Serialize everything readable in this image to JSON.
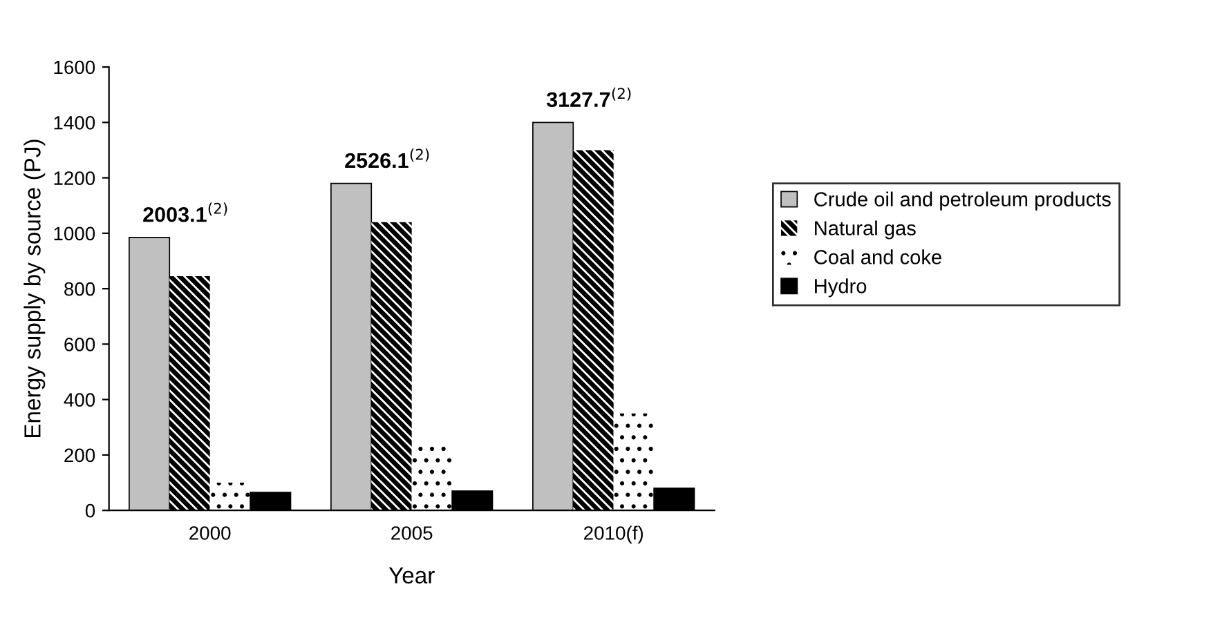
{
  "chart_data": {
    "type": "bar",
    "xlabel": "Year",
    "ylabel": "Energy supply by source (PJ)",
    "categories": [
      "2000",
      "2005",
      "2010(f)"
    ],
    "series": [
      {
        "name": "Crude oil and petroleum products",
        "color": "#c0c0c0",
        "values": [
          985,
          1180,
          1400
        ]
      },
      {
        "name": "Natural gas",
        "color": "#000000",
        "values": [
          845,
          1040,
          1300
        ]
      },
      {
        "name": "Coal and coke",
        "color": "#ffffff",
        "values": [
          100,
          230,
          350
        ]
      },
      {
        "name": "Hydro",
        "color": "#000000",
        "values": [
          65,
          70,
          80
        ]
      }
    ],
    "ylim": [
      0,
      1600
    ],
    "yticks": [
      0,
      200,
      400,
      600,
      800,
      1000,
      1200,
      1400,
      1600
    ],
    "grid": false,
    "legend": "right",
    "annotations": [
      "2003.1$^{(2)}$",
      "2526.1$^{(2)}$",
      "3127.7$^{(2)}$"
    ]
  }
}
